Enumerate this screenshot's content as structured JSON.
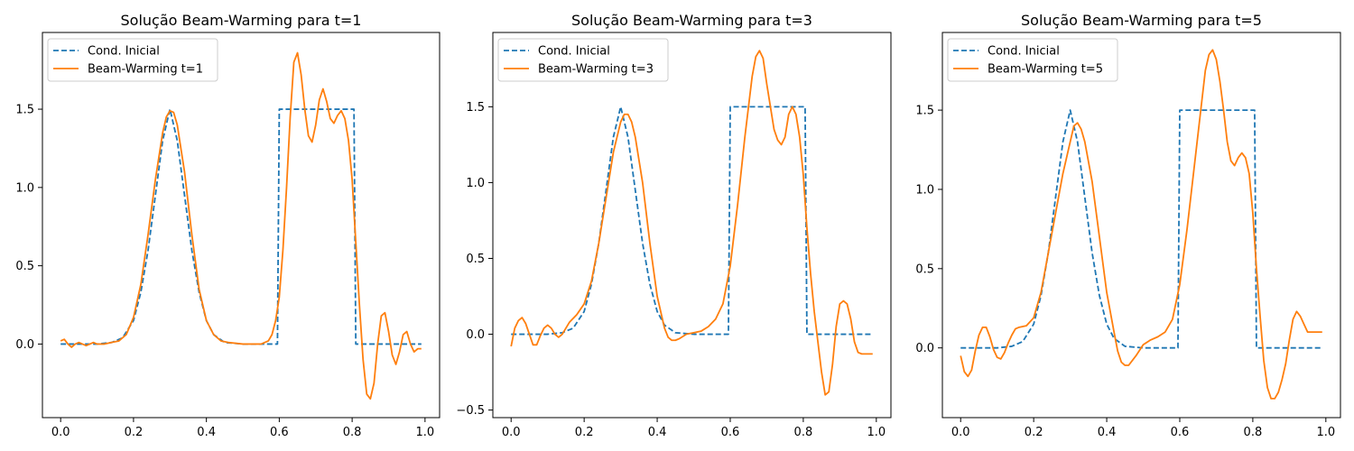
{
  "chart_data": [
    {
      "type": "line",
      "title": "Solução Beam-Warming para t=1",
      "xlabel": "",
      "ylabel": "",
      "xlim": [
        -0.05,
        1.04
      ],
      "ylim": [
        -0.47,
        1.99
      ],
      "xticks": [
        0.0,
        0.2,
        0.4,
        0.6,
        0.8,
        1.0
      ],
      "xtick_labels": [
        "0.0",
        "0.2",
        "0.4",
        "0.6",
        "0.8",
        "1.0"
      ],
      "yticks": [
        0.0,
        0.5,
        1.0,
        1.5
      ],
      "ytick_labels": [
        "0.0",
        "0.5",
        "1.0",
        "1.5"
      ],
      "grid": false,
      "legend": "upper-left",
      "series": [
        {
          "name": "Cond. Inicial",
          "color": "#1f77b4",
          "dash": true,
          "x": [
            0.0,
            0.05,
            0.1,
            0.14,
            0.17,
            0.2,
            0.22,
            0.24,
            0.26,
            0.28,
            0.3,
            0.32,
            0.34,
            0.36,
            0.38,
            0.4,
            0.42,
            0.45,
            0.5,
            0.595,
            0.6,
            0.805,
            0.81,
            0.99
          ],
          "values": [
            0.0,
            0.0,
            0.0,
            0.01,
            0.04,
            0.15,
            0.33,
            0.6,
            0.95,
            1.3,
            1.5,
            1.3,
            0.95,
            0.6,
            0.33,
            0.15,
            0.06,
            0.01,
            0.0,
            0.0,
            1.5,
            1.5,
            0.0,
            0.0
          ]
        },
        {
          "name": "Beam-Warming t=1",
          "color": "#ff7f0e",
          "dash": false,
          "x": [
            0.0,
            0.01,
            0.02,
            0.03,
            0.04,
            0.05,
            0.06,
            0.07,
            0.08,
            0.09,
            0.1,
            0.12,
            0.14,
            0.16,
            0.18,
            0.2,
            0.22,
            0.24,
            0.26,
            0.28,
            0.29,
            0.3,
            0.31,
            0.32,
            0.34,
            0.36,
            0.38,
            0.4,
            0.42,
            0.44,
            0.46,
            0.5,
            0.55,
            0.57,
            0.58,
            0.59,
            0.6,
            0.61,
            0.62,
            0.63,
            0.64,
            0.65,
            0.66,
            0.67,
            0.68,
            0.69,
            0.7,
            0.71,
            0.72,
            0.73,
            0.74,
            0.75,
            0.76,
            0.77,
            0.78,
            0.79,
            0.8,
            0.81,
            0.82,
            0.83,
            0.84,
            0.85,
            0.86,
            0.87,
            0.88,
            0.89,
            0.9,
            0.91,
            0.92,
            0.93,
            0.94,
            0.95,
            0.96,
            0.97,
            0.98,
            0.99
          ],
          "values": [
            0.02,
            0.03,
            0.0,
            -0.02,
            0.0,
            0.01,
            0.0,
            -0.01,
            0.0,
            0.01,
            0.0,
            0.0,
            0.01,
            0.02,
            0.06,
            0.17,
            0.38,
            0.7,
            1.05,
            1.35,
            1.45,
            1.49,
            1.48,
            1.4,
            1.1,
            0.7,
            0.35,
            0.15,
            0.06,
            0.02,
            0.01,
            0.0,
            0.0,
            0.02,
            0.06,
            0.15,
            0.3,
            0.6,
            1.0,
            1.45,
            1.8,
            1.86,
            1.72,
            1.5,
            1.33,
            1.29,
            1.4,
            1.56,
            1.63,
            1.55,
            1.44,
            1.41,
            1.46,
            1.49,
            1.44,
            1.3,
            1.05,
            0.65,
            0.25,
            -0.1,
            -0.32,
            -0.35,
            -0.25,
            0.0,
            0.18,
            0.2,
            0.08,
            -0.07,
            -0.13,
            -0.05,
            0.06,
            0.08,
            0.0,
            -0.05,
            -0.03,
            -0.03
          ]
        }
      ]
    },
    {
      "type": "line",
      "title": "Solução Beam-Warming para t=3",
      "xlabel": "",
      "ylabel": "",
      "xlim": [
        -0.05,
        1.04
      ],
      "ylim": [
        -0.55,
        1.99
      ],
      "xticks": [
        0.0,
        0.2,
        0.4,
        0.6,
        0.8,
        1.0
      ],
      "xtick_labels": [
        "0.0",
        "0.2",
        "0.4",
        "0.6",
        "0.8",
        "1.0"
      ],
      "yticks": [
        -0.5,
        0.0,
        0.5,
        1.0,
        1.5
      ],
      "ytick_labels": [
        "−0.5",
        "0.0",
        "0.5",
        "1.0",
        "1.5"
      ],
      "grid": false,
      "legend": "upper-left",
      "series": [
        {
          "name": "Cond. Inicial",
          "color": "#1f77b4",
          "dash": true,
          "x": [
            0.0,
            0.05,
            0.1,
            0.14,
            0.17,
            0.2,
            0.22,
            0.24,
            0.26,
            0.28,
            0.3,
            0.32,
            0.34,
            0.36,
            0.38,
            0.4,
            0.42,
            0.45,
            0.5,
            0.595,
            0.6,
            0.805,
            0.81,
            0.99
          ],
          "values": [
            0.0,
            0.0,
            0.0,
            0.01,
            0.04,
            0.15,
            0.33,
            0.6,
            0.95,
            1.3,
            1.5,
            1.3,
            0.95,
            0.6,
            0.33,
            0.15,
            0.06,
            0.01,
            0.0,
            0.0,
            1.5,
            1.5,
            0.0,
            0.0
          ]
        },
        {
          "name": "Beam-Warming t=3",
          "color": "#ff7f0e",
          "dash": false,
          "x": [
            0.0,
            0.01,
            0.02,
            0.03,
            0.04,
            0.05,
            0.06,
            0.07,
            0.08,
            0.09,
            0.1,
            0.11,
            0.12,
            0.13,
            0.14,
            0.15,
            0.16,
            0.18,
            0.2,
            0.22,
            0.24,
            0.26,
            0.28,
            0.3,
            0.31,
            0.32,
            0.33,
            0.34,
            0.36,
            0.38,
            0.4,
            0.42,
            0.43,
            0.44,
            0.45,
            0.46,
            0.48,
            0.5,
            0.52,
            0.54,
            0.56,
            0.58,
            0.6,
            0.62,
            0.64,
            0.66,
            0.67,
            0.68,
            0.69,
            0.7,
            0.71,
            0.72,
            0.73,
            0.74,
            0.75,
            0.76,
            0.77,
            0.78,
            0.79,
            0.8,
            0.81,
            0.82,
            0.83,
            0.84,
            0.85,
            0.86,
            0.87,
            0.88,
            0.89,
            0.9,
            0.91,
            0.92,
            0.93,
            0.94,
            0.95,
            0.96,
            0.97,
            0.98,
            0.99
          ],
          "values": [
            -0.08,
            0.04,
            0.09,
            0.11,
            0.07,
            0.0,
            -0.07,
            -0.07,
            -0.01,
            0.04,
            0.06,
            0.04,
            0.0,
            -0.02,
            0.0,
            0.04,
            0.08,
            0.13,
            0.2,
            0.35,
            0.6,
            0.9,
            1.2,
            1.4,
            1.45,
            1.45,
            1.4,
            1.3,
            1.0,
            0.6,
            0.25,
            0.04,
            -0.02,
            -0.04,
            -0.04,
            -0.03,
            0.0,
            0.01,
            0.02,
            0.05,
            0.1,
            0.2,
            0.45,
            0.85,
            1.3,
            1.7,
            1.83,
            1.87,
            1.82,
            1.65,
            1.5,
            1.35,
            1.28,
            1.25,
            1.3,
            1.45,
            1.5,
            1.45,
            1.3,
            1.05,
            0.7,
            0.4,
            0.15,
            -0.05,
            -0.25,
            -0.4,
            -0.38,
            -0.2,
            0.05,
            0.2,
            0.22,
            0.2,
            0.1,
            -0.05,
            -0.12,
            -0.13,
            -0.13,
            -0.13,
            -0.13
          ]
        }
      ]
    },
    {
      "type": "line",
      "title": "Solução Beam-Warming para t=5",
      "xlabel": "",
      "ylabel": "",
      "xlim": [
        -0.05,
        1.04
      ],
      "ylim": [
        -0.44,
        1.99
      ],
      "xticks": [
        0.0,
        0.2,
        0.4,
        0.6,
        0.8,
        1.0
      ],
      "xtick_labels": [
        "0.0",
        "0.2",
        "0.4",
        "0.6",
        "0.8",
        "1.0"
      ],
      "yticks": [
        0.0,
        0.5,
        1.0,
        1.5
      ],
      "ytick_labels": [
        "0.0",
        "0.5",
        "1.0",
        "1.5"
      ],
      "grid": false,
      "legend": "upper-left",
      "series": [
        {
          "name": "Cond. Inicial",
          "color": "#1f77b4",
          "dash": true,
          "x": [
            0.0,
            0.05,
            0.1,
            0.14,
            0.17,
            0.2,
            0.22,
            0.24,
            0.26,
            0.28,
            0.3,
            0.32,
            0.34,
            0.36,
            0.38,
            0.4,
            0.42,
            0.45,
            0.5,
            0.595,
            0.6,
            0.805,
            0.81,
            0.99
          ],
          "values": [
            0.0,
            0.0,
            0.0,
            0.01,
            0.04,
            0.15,
            0.33,
            0.6,
            0.95,
            1.3,
            1.5,
            1.3,
            0.95,
            0.6,
            0.33,
            0.15,
            0.06,
            0.01,
            0.0,
            0.0,
            1.5,
            1.5,
            0.0,
            0.0
          ]
        },
        {
          "name": "Beam-Warming t=5",
          "color": "#ff7f0e",
          "dash": false,
          "x": [
            0.0,
            0.01,
            0.02,
            0.03,
            0.04,
            0.05,
            0.06,
            0.07,
            0.08,
            0.09,
            0.1,
            0.11,
            0.12,
            0.13,
            0.14,
            0.15,
            0.16,
            0.18,
            0.2,
            0.22,
            0.24,
            0.26,
            0.28,
            0.3,
            0.31,
            0.32,
            0.33,
            0.34,
            0.36,
            0.38,
            0.4,
            0.42,
            0.43,
            0.44,
            0.45,
            0.46,
            0.48,
            0.5,
            0.52,
            0.54,
            0.56,
            0.58,
            0.6,
            0.62,
            0.64,
            0.66,
            0.67,
            0.68,
            0.69,
            0.7,
            0.71,
            0.72,
            0.73,
            0.74,
            0.75,
            0.76,
            0.77,
            0.78,
            0.79,
            0.8,
            0.81,
            0.82,
            0.83,
            0.84,
            0.85,
            0.86,
            0.87,
            0.88,
            0.89,
            0.9,
            0.91,
            0.92,
            0.93,
            0.94,
            0.95,
            0.96,
            0.97,
            0.98,
            0.99
          ],
          "values": [
            -0.05,
            -0.15,
            -0.18,
            -0.14,
            -0.02,
            0.08,
            0.13,
            0.13,
            0.07,
            -0.01,
            -0.06,
            -0.07,
            -0.03,
            0.03,
            0.08,
            0.12,
            0.13,
            0.14,
            0.19,
            0.35,
            0.6,
            0.85,
            1.1,
            1.3,
            1.4,
            1.42,
            1.38,
            1.3,
            1.05,
            0.7,
            0.35,
            0.1,
            -0.02,
            -0.09,
            -0.11,
            -0.11,
            -0.05,
            0.02,
            0.05,
            0.07,
            0.1,
            0.18,
            0.4,
            0.75,
            1.15,
            1.55,
            1.75,
            1.85,
            1.88,
            1.82,
            1.68,
            1.5,
            1.3,
            1.18,
            1.15,
            1.2,
            1.23,
            1.2,
            1.1,
            0.85,
            0.5,
            0.2,
            -0.08,
            -0.25,
            -0.32,
            -0.32,
            -0.28,
            -0.2,
            -0.1,
            0.05,
            0.18,
            0.23,
            0.2,
            0.15,
            0.1,
            0.1,
            0.1,
            0.1,
            0.1
          ]
        }
      ]
    }
  ]
}
